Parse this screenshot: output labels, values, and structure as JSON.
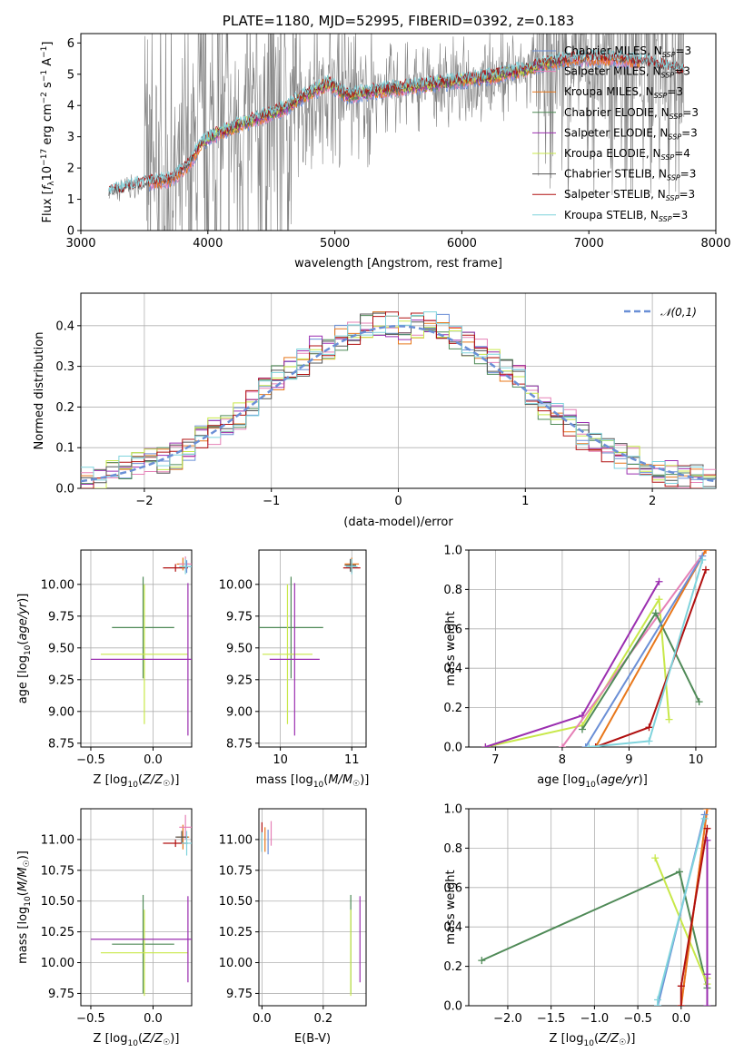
{
  "colors": {
    "chabrier_miles": "#6b8fd6",
    "salpeter_miles": "#e580b6",
    "kroupa_miles": "#e8771a",
    "chabrier_elodie": "#4f8a57",
    "salpeter_elodie": "#9b2fb0",
    "kroupa_elodie": "#c8e84a",
    "chabrier_stelib": "#555555",
    "salpeter_stelib": "#b01010",
    "kroupa_stelib": "#7fd3dc",
    "data": "#808080",
    "normal": "#6a8fd6",
    "grid": "#b0b0b0"
  },
  "chart_data": [
    {
      "id": "spectrum",
      "type": "line",
      "title": "PLATE=1180, MJD=52995, FIBERID=0392, z=0.183",
      "xlabel": "wavelength [Angstrom, rest frame]",
      "ylabel": "Flux [f_λ10^-17 erg cm^-2 s^-1 A^-1]",
      "xlim": [
        3000,
        8000
      ],
      "ylim": [
        0,
        6.3
      ],
      "xticks": [
        "3000",
        "4000",
        "5000",
        "6000",
        "7000",
        "8000"
      ],
      "yticks": [
        "0",
        "1",
        "2",
        "3",
        "4",
        "5",
        "6"
      ],
      "legend": [
        "Chabrier MILES, N_SSP=3",
        "Salpeter MILES, N_SSP=3",
        "Kroupa MILES, N_SSP=3",
        "Chabrier ELODIE, N_SSP=3",
        "Salpeter ELODIE, N_SSP=3",
        "Kroupa ELODIE, N_SSP=4",
        "Chabrier STELIB, N_SSP=3",
        "Salpeter STELIB, N_SSP=3",
        "Kroupa STELIB, N_SSP=3"
      ],
      "legend_position": "right",
      "model_continuum": {
        "x": [
          3220,
          3400,
          3550,
          3700,
          3850,
          3950,
          4050,
          4300,
          4600,
          4800,
          4950,
          5100,
          5300,
          5600,
          5900,
          6200,
          6500,
          6700,
          6900,
          7200,
          7400,
          7600,
          7750
        ],
        "y": [
          1.2,
          1.4,
          1.55,
          1.6,
          2.1,
          2.8,
          3.05,
          3.45,
          3.9,
          4.4,
          4.7,
          4.3,
          4.45,
          4.6,
          4.75,
          4.9,
          5.15,
          5.4,
          5.5,
          5.5,
          5.4,
          5.25,
          5.05
        ]
      },
      "data_envelope_note": "",
      "grid": false
    },
    {
      "id": "residuals",
      "type": "histogram",
      "xlabel": "(data-model)/error",
      "ylabel": "Normed distribution",
      "xlim": [
        -2.5,
        2.5
      ],
      "ylim": [
        0,
        0.48
      ],
      "xticks": [
        "−2",
        "−1",
        "0",
        "1",
        "2"
      ],
      "yticks": [
        "0.0",
        "0.1",
        "0.2",
        "0.3",
        "0.4"
      ],
      "legend": [
        "𝒩(0,1)"
      ],
      "legend_position": "top-right",
      "grid": true,
      "bins_centers": [
        -2.45,
        -2.35,
        -2.25,
        -2.15,
        -2.05,
        -1.95,
        -1.85,
        -1.75,
        -1.65,
        -1.55,
        -1.45,
        -1.35,
        -1.25,
        -1.15,
        -1.05,
        -0.95,
        -0.85,
        -0.75,
        -0.65,
        -0.55,
        -0.45,
        -0.35,
        -0.25,
        -0.15,
        -0.05,
        0.05,
        0.15,
        0.25,
        0.35,
        0.45,
        0.55,
        0.65,
        0.75,
        0.85,
        0.95,
        1.05,
        1.15,
        1.25,
        1.35,
        1.45,
        1.55,
        1.65,
        1.75,
        1.85,
        1.95,
        2.05,
        2.15,
        2.25,
        2.35,
        2.45
      ],
      "hist_reference": [
        0.02,
        0.025,
        0.035,
        0.045,
        0.06,
        0.065,
        0.07,
        0.08,
        0.1,
        0.12,
        0.14,
        0.16,
        0.18,
        0.21,
        0.24,
        0.27,
        0.29,
        0.31,
        0.34,
        0.35,
        0.37,
        0.38,
        0.4,
        0.41,
        0.4,
        0.39,
        0.4,
        0.41,
        0.4,
        0.37,
        0.36,
        0.34,
        0.31,
        0.29,
        0.27,
        0.24,
        0.2,
        0.18,
        0.16,
        0.13,
        0.11,
        0.09,
        0.08,
        0.07,
        0.06,
        0.045,
        0.035,
        0.03,
        0.025,
        0.02
      ]
    },
    {
      "id": "age-vs-z",
      "type": "errorbar",
      "xlabel": "Z [log10(Z/Z☉)]",
      "ylabel": "age [log10(age/yr)]",
      "xlim": [
        -0.58,
        0.31
      ],
      "ylim": [
        8.72,
        10.27
      ],
      "xticks": [
        "−0.5",
        "0.0"
      ],
      "yticks": [
        "8.75",
        "9.00",
        "9.25",
        "9.50",
        "9.75",
        "10.00"
      ],
      "points": [
        {
          "series": "chabrier_elodie",
          "x": -0.08,
          "xerr": 0.25,
          "y": 9.66,
          "yerr": 0.4
        },
        {
          "series": "kroupa_elodie",
          "x": -0.07,
          "xerr": 0.35,
          "y": 9.45,
          "yerr": 0.55
        },
        {
          "series": "salpeter_elodie",
          "x": 0.28,
          "xerr": 0.78,
          "y": 9.41,
          "yerr": 0.6
        },
        {
          "series": "salpeter_stelib",
          "x": 0.18,
          "xerr": 0.1,
          "y": 10.13,
          "yerr": 0.03
        },
        {
          "series": "kroupa_miles",
          "x": 0.24,
          "xerr": 0.05,
          "y": 10.16,
          "yerr": 0.05
        },
        {
          "series": "salpeter_miles",
          "x": 0.26,
          "xerr": 0.05,
          "y": 10.16,
          "yerr": 0.06
        },
        {
          "series": "chabrier_miles",
          "x": 0.27,
          "xerr": 0.04,
          "y": 10.14,
          "yerr": 0.05
        },
        {
          "series": "kroupa_stelib",
          "x": 0.26,
          "xerr": 0.05,
          "y": 10.14,
          "yerr": 0.06
        }
      ]
    },
    {
      "id": "age-vs-mass",
      "type": "errorbar",
      "xlabel": "mass [log10(M/M☉)]",
      "ylabel": "",
      "xlim": [
        9.7,
        11.2
      ],
      "ylim": [
        8.72,
        10.27
      ],
      "xticks": [
        "10",
        "11"
      ],
      "yticks": [
        "8.75",
        "9.00",
        "9.25",
        "9.50",
        "9.75",
        "10.00"
      ],
      "points": [
        {
          "series": "chabrier_elodie",
          "x": 10.15,
          "xerr": 0.45,
          "y": 9.66,
          "yerr": 0.4
        },
        {
          "series": "kroupa_elodie",
          "x": 10.1,
          "xerr": 0.35,
          "y": 9.45,
          "yerr": 0.55
        },
        {
          "series": "salpeter_elodie",
          "x": 10.2,
          "xerr": 0.35,
          "y": 9.41,
          "yerr": 0.6
        },
        {
          "series": "salpeter_stelib",
          "x": 11.0,
          "xerr": 0.12,
          "y": 10.13,
          "yerr": 0.04
        },
        {
          "series": "kroupa_miles",
          "x": 11.0,
          "xerr": 0.1,
          "y": 10.16,
          "yerr": 0.05
        },
        {
          "series": "chabrier_stelib",
          "x": 10.98,
          "xerr": 0.08,
          "y": 10.15,
          "yerr": 0.05
        },
        {
          "series": "kroupa_stelib",
          "x": 11.0,
          "xerr": 0.08,
          "y": 10.14,
          "yerr": 0.06
        }
      ]
    },
    {
      "id": "weight-vs-age",
      "type": "line",
      "xlabel": "age [log10(age/yr)]",
      "ylabel": "mass weight",
      "xlim": [
        6.6,
        10.3
      ],
      "ylim": [
        0,
        1.0
      ],
      "xticks": [
        "7",
        "8",
        "9",
        "10"
      ],
      "yticks": [
        "0.0",
        "0.2",
        "0.4",
        "0.6",
        "0.8",
        "1.0"
      ],
      "series": [
        {
          "key": "kroupa_elodie",
          "x": [
            6.85,
            8.3,
            9.45,
            9.6
          ],
          "y": [
            0.0,
            0.11,
            0.75,
            0.14
          ]
        },
        {
          "key": "salpeter_elodie",
          "x": [
            6.85,
            8.3,
            9.45
          ],
          "y": [
            0.0,
            0.16,
            0.84
          ]
        },
        {
          "key": "salpeter_miles",
          "x": [
            8.0,
            10.15
          ],
          "y": [
            0.0,
            1.0
          ]
        },
        {
          "key": "chabrier_elodie",
          "x": [
            8.3,
            9.4,
            10.05
          ],
          "y": [
            0.09,
            0.68,
            0.23
          ]
        },
        {
          "key": "kroupa_miles",
          "x": [
            8.5,
            10.15
          ],
          "y": [
            0.0,
            1.0
          ]
        },
        {
          "key": "chabrier_miles",
          "x": [
            8.35,
            10.1
          ],
          "y": [
            0.0,
            0.97
          ]
        },
        {
          "key": "salpeter_stelib",
          "x": [
            8.5,
            9.3,
            10.15
          ],
          "y": [
            0.0,
            0.1,
            0.9
          ]
        },
        {
          "key": "kroupa_stelib",
          "x": [
            8.4,
            9.3,
            10.1
          ],
          "y": [
            0.0,
            0.03,
            0.95
          ]
        }
      ]
    },
    {
      "id": "mass-vs-z",
      "type": "errorbar",
      "xlabel": "Z [log10(Z/Z☉)]",
      "ylabel": "mass [log10(M/M☉)]",
      "xlim": [
        -0.58,
        0.31
      ],
      "ylim": [
        9.65,
        11.25
      ],
      "xticks": [
        "−0.5",
        "0.0"
      ],
      "yticks": [
        "9.75",
        "10.00",
        "10.25",
        "10.50",
        "10.75",
        "11.00"
      ],
      "points": [
        {
          "series": "chabrier_elodie",
          "x": -0.08,
          "xerr": 0.25,
          "y": 10.15,
          "yerr": 0.4
        },
        {
          "series": "kroupa_elodie",
          "x": -0.07,
          "xerr": 0.35,
          "y": 10.08,
          "yerr": 0.35
        },
        {
          "series": "salpeter_elodie",
          "x": 0.28,
          "xerr": 0.78,
          "y": 10.19,
          "yerr": 0.35
        },
        {
          "series": "salpeter_stelib",
          "x": 0.18,
          "xerr": 0.1,
          "y": 10.97,
          "yerr": 0.03
        },
        {
          "series": "kroupa_miles",
          "x": 0.24,
          "xerr": 0.05,
          "y": 11.02,
          "yerr": 0.1
        },
        {
          "series": "salpeter_miles",
          "x": 0.26,
          "xerr": 0.05,
          "y": 11.1,
          "yerr": 0.1
        },
        {
          "series": "chabrier_stelib",
          "x": 0.23,
          "xerr": 0.05,
          "y": 11.02,
          "yerr": 0.05
        },
        {
          "series": "kroupa_stelib",
          "x": 0.27,
          "xerr": 0.04,
          "y": 10.97,
          "yerr": 0.1
        }
      ]
    },
    {
      "id": "mass-vs-ebv",
      "type": "errorbar",
      "xlabel": "E(B-V)",
      "ylabel": "",
      "xlim": [
        -0.01,
        0.34
      ],
      "ylim": [
        9.65,
        11.25
      ],
      "xticks": [
        "0.0",
        "0.2"
      ],
      "yticks": [
        "9.75",
        "10.00",
        "10.25",
        "10.50",
        "10.75",
        "11.00"
      ],
      "points": [
        {
          "series": "chabrier_elodie",
          "x": 0.29,
          "y": 10.15,
          "yerr": 0.4
        },
        {
          "series": "kroupa_elodie",
          "x": 0.29,
          "y": 10.08,
          "yerr": 0.35
        },
        {
          "series": "salpeter_elodie",
          "x": 0.32,
          "y": 10.19,
          "yerr": 0.35
        },
        {
          "series": "salpeter_stelib",
          "x": 0.0,
          "y": 11.02,
          "yerr": 0.12
        },
        {
          "series": "kroupa_miles",
          "x": 0.01,
          "y": 11.0,
          "yerr": 0.1
        },
        {
          "series": "salpeter_miles",
          "x": 0.03,
          "y": 11.05,
          "yerr": 0.1
        },
        {
          "series": "chabrier_miles",
          "x": 0.02,
          "y": 10.98,
          "yerr": 0.1
        },
        {
          "series": "kroupa_stelib",
          "x": 0.0,
          "y": 10.98,
          "yerr": 0.08
        }
      ]
    },
    {
      "id": "weight-vs-z",
      "type": "line",
      "xlabel": "Z [log10(Z/Z☉)]",
      "ylabel": "mass weight",
      "xlim": [
        -2.45,
        0.4
      ],
      "ylim": [
        0,
        1.0
      ],
      "xticks": [
        "−2.0",
        "−1.5",
        "−1.0",
        "−0.5",
        "0.0"
      ],
      "yticks": [
        "0.0",
        "0.2",
        "0.4",
        "0.6",
        "0.8",
        "1.0"
      ],
      "series": [
        {
          "key": "chabrier_elodie",
          "x": [
            -2.3,
            -0.02,
            0.3
          ],
          "y": [
            0.23,
            0.68,
            0.09
          ]
        },
        {
          "key": "kroupa_elodie",
          "x": [
            -0.3,
            0.3,
            0.3
          ],
          "y": [
            0.75,
            0.11,
            0.14
          ]
        },
        {
          "key": "salpeter_elodie",
          "x": [
            0.3,
            0.3,
            0.3
          ],
          "y": [
            0.0,
            0.16,
            0.84
          ]
        },
        {
          "key": "salpeter_miles",
          "x": [
            0.0,
            0.3
          ],
          "y": [
            0.0,
            1.0
          ]
        },
        {
          "key": "kroupa_miles",
          "x": [
            0.0,
            0.3
          ],
          "y": [
            0.0,
            1.0
          ]
        },
        {
          "key": "salpeter_stelib",
          "x": [
            0.0,
            0.0,
            0.3
          ],
          "y": [
            0.0,
            0.1,
            0.9
          ]
        },
        {
          "key": "chabrier_miles",
          "x": [
            -0.27,
            0.27
          ],
          "y": [
            0.0,
            0.97
          ]
        },
        {
          "key": "kroupa_stelib",
          "x": [
            -0.27,
            -0.27,
            0.27
          ],
          "y": [
            0.0,
            0.03,
            0.95
          ]
        }
      ]
    }
  ]
}
